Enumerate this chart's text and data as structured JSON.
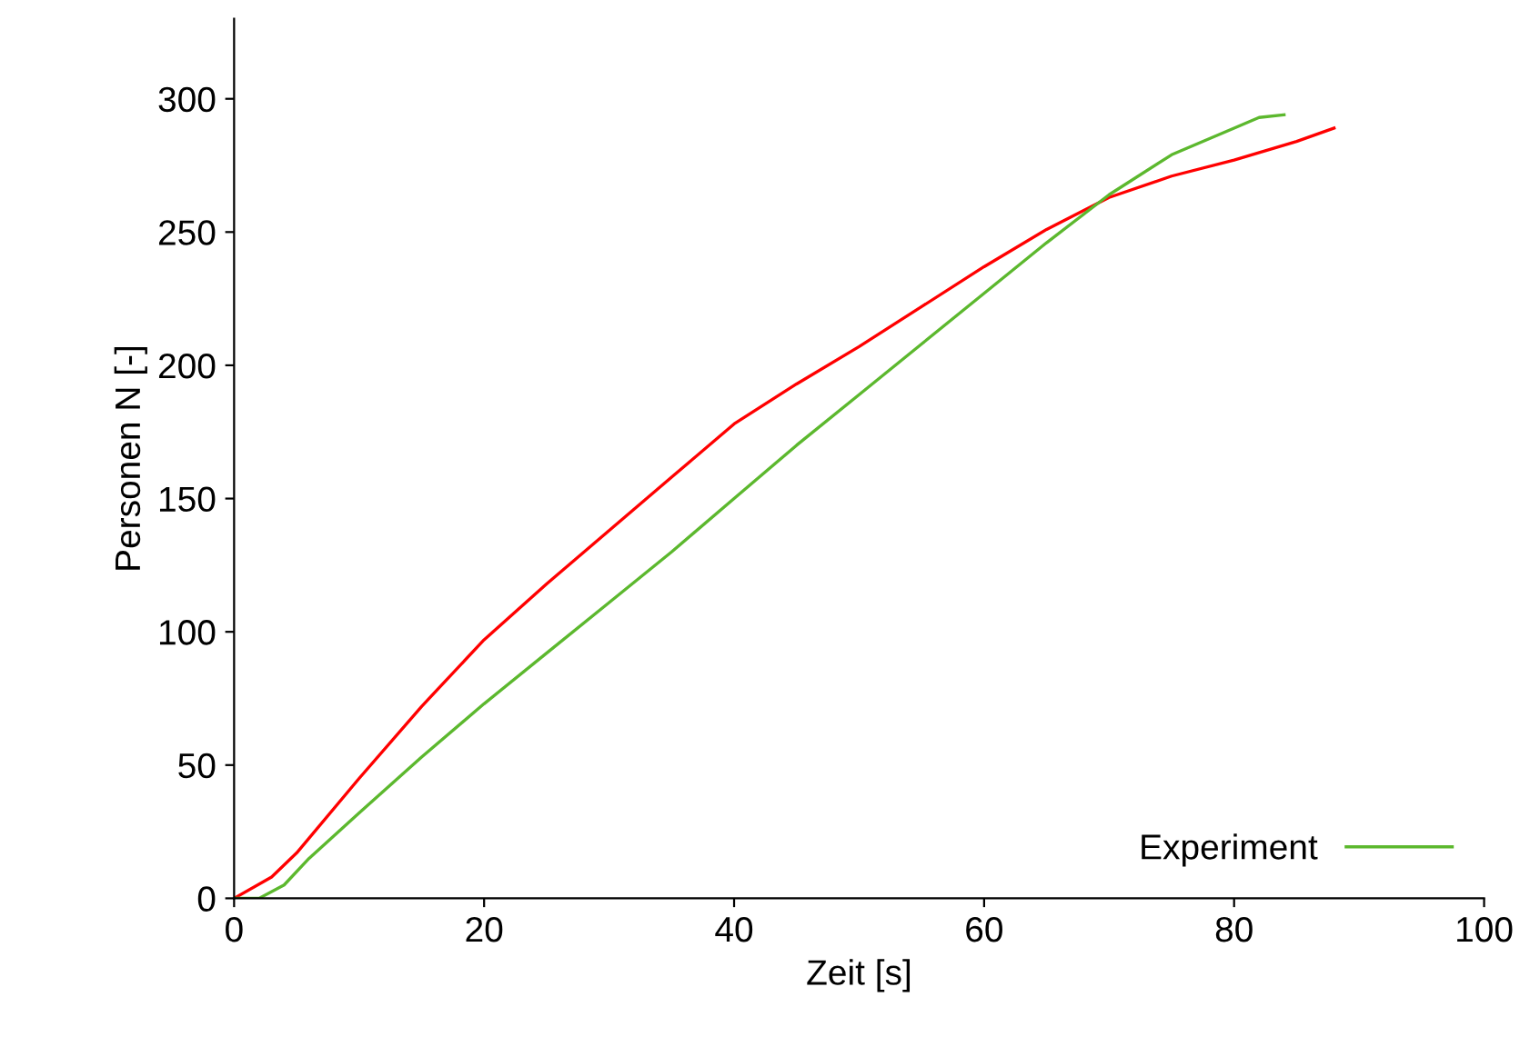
{
  "chart_data": {
    "type": "line",
    "xlabel": "Zeit [s]",
    "ylabel": "Personen N [-]",
    "xlim": [
      0,
      100
    ],
    "xticks": [
      0,
      20,
      40,
      60,
      80,
      100
    ],
    "ylim": [
      0,
      330
    ],
    "yticks": [
      0,
      50,
      100,
      150,
      200,
      250,
      300
    ],
    "grid": false,
    "legend": "bottom right",
    "marker": "none",
    "line_style": "solid",
    "series": [
      {
        "color": "#ff0000",
        "x": [
          0,
          3,
          5,
          10,
          15,
          20,
          25,
          30,
          35,
          40,
          45,
          50,
          55,
          60,
          65,
          70,
          75,
          80,
          85,
          88
        ],
        "values": [
          0,
          8,
          17,
          45,
          72,
          97,
          118,
          138,
          158,
          178,
          193,
          207,
          222,
          237,
          251,
          263,
          271,
          277,
          284,
          289
        ]
      },
      {
        "name": "Experiment",
        "color": "#5cb82e",
        "x": [
          0,
          2,
          4,
          6,
          10,
          15,
          20,
          25,
          30,
          35,
          40,
          45,
          50,
          55,
          60,
          65,
          70,
          75,
          80,
          82,
          84
        ],
        "values": [
          0,
          0,
          5,
          15,
          32,
          53,
          73,
          92,
          111,
          130,
          150,
          170,
          189,
          208,
          227,
          246,
          264,
          279,
          289,
          293,
          294
        ]
      }
    ]
  }
}
